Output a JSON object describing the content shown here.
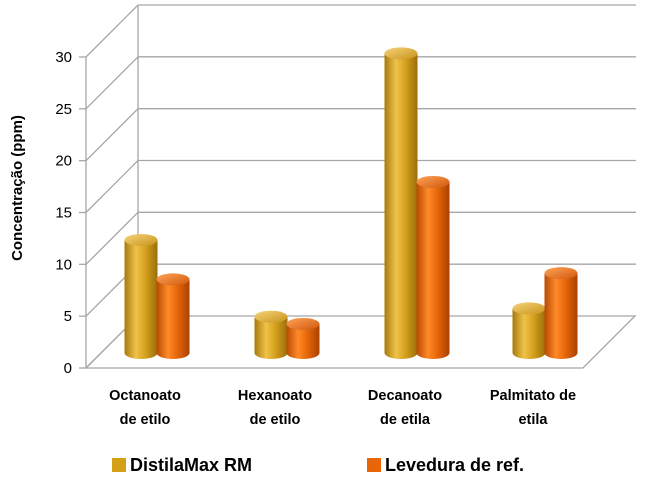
{
  "chart_data": {
    "type": "bar",
    "style": "3d-cylinder",
    "categories": [
      [
        "Octanoato",
        "de etilo"
      ],
      [
        "Hexanoato",
        "de etilo"
      ],
      [
        "Decanoato",
        "de etila"
      ],
      [
        "Palmitato de",
        "etila"
      ]
    ],
    "series": [
      {
        "name": "DistilaMax RM",
        "values": [
          10.9,
          3.5,
          28.9,
          4.3
        ],
        "color": "#D4A017"
      },
      {
        "name": "Levedura de ref.",
        "values": [
          7.1,
          2.8,
          16.5,
          7.7
        ],
        "color": "#E8650A"
      }
    ],
    "ylabel": "Concentração  (ppm)",
    "ylim": [
      0,
      30
    ],
    "yticks": [
      0,
      5,
      10,
      15,
      20,
      25,
      30
    ],
    "grid": true,
    "legend": "bottom"
  }
}
